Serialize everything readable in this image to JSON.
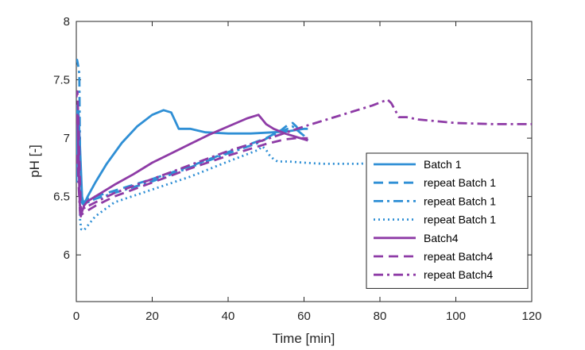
{
  "chart_data": {
    "type": "line",
    "title": "",
    "xlabel": "Time [min]",
    "ylabel": "pH [-]",
    "xlim": [
      0,
      120
    ],
    "ylim": [
      5.6,
      8
    ],
    "xticks": [
      0,
      20,
      40,
      60,
      80,
      100,
      120
    ],
    "yticks": [
      6,
      6.5,
      7,
      7.5,
      8
    ],
    "xtick_labels": [
      "0",
      "20",
      "40",
      "60",
      "80",
      "100",
      "120"
    ],
    "ytick_labels": [
      "6",
      "6.5",
      "7",
      "7.5",
      "8"
    ],
    "grid": false,
    "legend_position": "bottom-right",
    "series": [
      {
        "name": "Batch 1",
        "color": "#2f8fd5",
        "dash": "solid",
        "x": [
          0,
          0.3,
          0.6,
          1,
          1.5,
          2,
          3,
          5,
          8,
          12,
          16,
          20,
          23,
          25,
          26,
          27,
          28,
          30,
          34,
          40,
          46,
          52,
          56,
          58,
          60,
          61
        ],
        "y": [
          6.62,
          7.28,
          7.2,
          6.9,
          6.5,
          6.43,
          6.5,
          6.62,
          6.78,
          6.96,
          7.1,
          7.2,
          7.24,
          7.22,
          7.15,
          7.08,
          7.08,
          7.08,
          7.05,
          7.04,
          7.04,
          7.05,
          7.06,
          7.07,
          7.08,
          7.08
        ]
      },
      {
        "name": "repeat Batch 1",
        "color": "#2f8fd5",
        "dash": "dash",
        "x": [
          0,
          0.3,
          0.6,
          1,
          1.4,
          2,
          3,
          5,
          10,
          20,
          30,
          40,
          50,
          54,
          56,
          57,
          58,
          59
        ],
        "y": [
          6.7,
          7.2,
          7.15,
          6.6,
          6.42,
          6.45,
          6.48,
          6.5,
          6.55,
          6.65,
          6.76,
          6.88,
          7.0,
          7.07,
          7.12,
          7.13,
          7.1,
          7.05
        ]
      },
      {
        "name": "repeat Batch 1",
        "color": "#2f8fd5",
        "dash": "dashdot",
        "x": [
          0,
          0.2,
          0.5,
          0.8,
          1,
          1.4,
          2,
          3,
          5,
          10,
          20,
          30,
          40,
          48,
          52,
          55,
          57,
          60,
          61
        ],
        "y": [
          7.65,
          7.67,
          7.62,
          7.55,
          6.75,
          6.45,
          6.43,
          6.45,
          6.48,
          6.53,
          6.63,
          6.75,
          6.87,
          6.96,
          7.03,
          7.07,
          7.1,
          7.02,
          6.98
        ]
      },
      {
        "name": "repeat Batch 1",
        "color": "#2f8fd5",
        "dash": "dot",
        "x": [
          0,
          0.3,
          0.7,
          1,
          1.3,
          2,
          3,
          5,
          10,
          20,
          30,
          40,
          48,
          49,
          50,
          51,
          52,
          53,
          54,
          56,
          60,
          65,
          70,
          75,
          77
        ],
        "y": [
          7.15,
          7.3,
          7.0,
          6.3,
          6.22,
          6.21,
          6.25,
          6.33,
          6.45,
          6.56,
          6.67,
          6.8,
          6.9,
          6.93,
          6.9,
          6.85,
          6.82,
          6.8,
          6.8,
          6.8,
          6.79,
          6.78,
          6.78,
          6.78,
          6.79
        ]
      },
      {
        "name": "Batch4",
        "color": "#8e3ba6",
        "dash": "solid",
        "x": [
          0,
          0.3,
          0.6,
          0.9,
          1.2,
          1.5,
          2,
          3,
          5,
          10,
          15,
          20,
          25,
          30,
          35,
          40,
          45,
          48,
          49,
          50,
          52,
          55,
          58,
          61
        ],
        "y": [
          7.12,
          7.2,
          6.8,
          6.45,
          6.33,
          6.37,
          6.42,
          6.46,
          6.5,
          6.6,
          6.69,
          6.79,
          6.87,
          6.95,
          7.03,
          7.1,
          7.17,
          7.2,
          7.16,
          7.12,
          7.08,
          7.04,
          7.01,
          6.98
        ]
      },
      {
        "name": "repeat Batch4",
        "color": "#8e3ba6",
        "dash": "dash",
        "x": [
          0,
          0.3,
          0.6,
          0.9,
          1.2,
          1.6,
          2,
          3,
          5,
          10,
          20,
          30,
          40,
          50,
          55,
          58,
          61
        ],
        "y": [
          7.35,
          7.4,
          7.1,
          6.7,
          6.4,
          6.35,
          6.36,
          6.38,
          6.42,
          6.5,
          6.62,
          6.74,
          6.85,
          6.95,
          6.99,
          7.0,
          7.0
        ]
      },
      {
        "name": "repeat Batch4",
        "color": "#8e3ba6",
        "dash": "dashdot",
        "x": [
          0,
          0.3,
          0.6,
          1,
          1.4,
          2,
          5,
          10,
          20,
          30,
          40,
          50,
          60,
          70,
          78,
          82,
          83,
          84,
          85,
          87,
          90,
          100,
          110,
          120
        ],
        "y": [
          6.78,
          6.85,
          6.6,
          6.35,
          6.38,
          6.4,
          6.45,
          6.53,
          6.65,
          6.77,
          6.89,
          6.99,
          7.1,
          7.2,
          7.28,
          7.33,
          7.3,
          7.24,
          7.18,
          7.18,
          7.16,
          7.13,
          7.12,
          7.12
        ]
      }
    ]
  }
}
